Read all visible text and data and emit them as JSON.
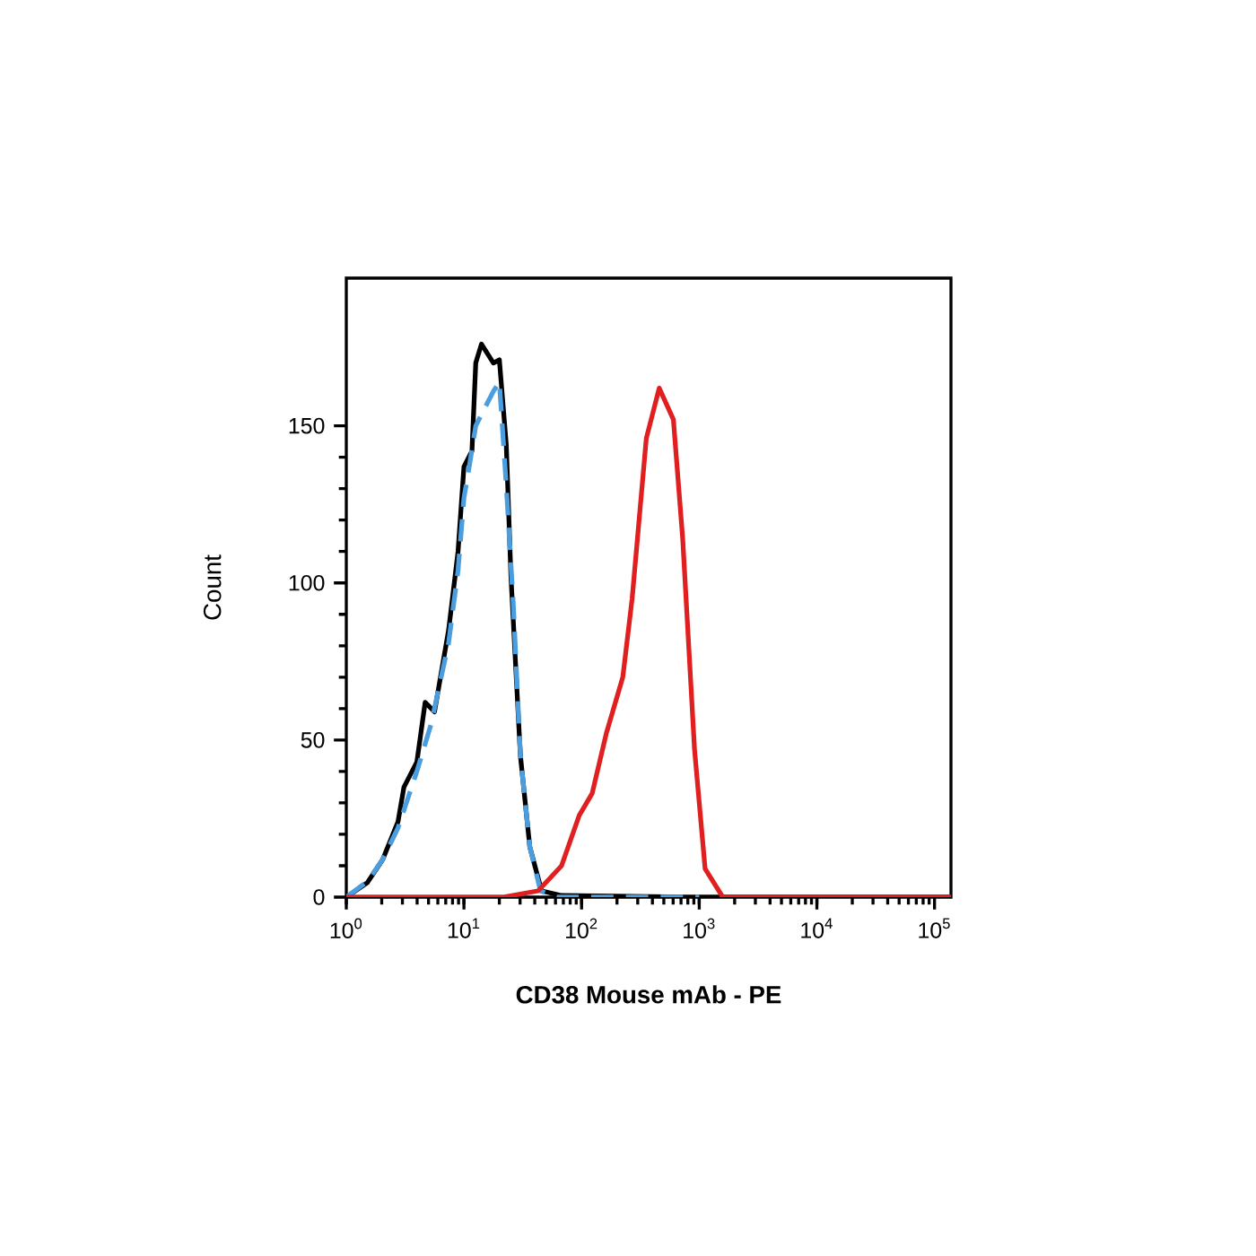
{
  "chart_data": {
    "type": "line",
    "xlabel": "CD38 Mouse mAb - PE",
    "ylabel": "Count",
    "log": "x",
    "grid": false,
    "marker": "none",
    "xlim": [
      1,
      138000
    ],
    "ylim": [
      0,
      197
    ],
    "xticks": [
      {
        "value": 1,
        "label": "10$^{0}$"
      },
      {
        "value": 10,
        "label": "10$^{1}$"
      },
      {
        "value": 100,
        "label": "10$^{2}$"
      },
      {
        "value": 1000,
        "label": "10$^{3}$"
      },
      {
        "value": 10000,
        "label": "10$^{4}$"
      },
      {
        "value": 100000,
        "label": "10$^{5}$"
      }
    ],
    "yticks": [
      0,
      50,
      100,
      150
    ],
    "series": [
      {
        "color": "#000000",
        "line_style": "solid",
        "x": [
          1,
          1.51,
          2.04,
          2.75,
          3.09,
          3.98,
          4.68,
          5.62,
          7.41,
          8.91,
          10,
          11.7,
          12.6,
          14.1,
          17.8,
          20,
          22.9,
          25.1,
          30.2,
          36.3,
          45.7,
          67.6,
          1000,
          10000,
          138000
        ],
        "values": [
          0,
          4.6,
          12,
          24,
          35,
          43,
          62,
          59,
          85,
          110,
          137,
          142,
          170,
          176,
          170,
          171,
          144,
          102,
          45,
          16,
          2,
          0.5,
          0,
          0,
          0
        ]
      },
      {
        "color": "#4a9ee0",
        "line_style": "dashed",
        "x": [
          1,
          1.51,
          2.04,
          2.75,
          3.98,
          5.25,
          7.41,
          8.91,
          10,
          11.2,
          12.6,
          17.8,
          20,
          22.9,
          26.3,
          30.2,
          36.3,
          44.7,
          61.7,
          1000
        ],
        "values": [
          0,
          5,
          12,
          22,
          40,
          55,
          81,
          104,
          127,
          138,
          150,
          161,
          164,
          131,
          93,
          45,
          16,
          2,
          0,
          0
        ]
      },
      {
        "color": "#e02020",
        "line_style": "solid",
        "x": [
          1,
          21.4,
          42.7,
          67.6,
          95.5,
          123,
          162,
          224,
          269,
          355,
          457,
          603,
          724,
          912,
          1122,
          1585,
          138000
        ],
        "values": [
          0,
          0,
          2,
          10,
          26,
          33,
          52,
          70,
          95,
          146,
          162,
          152,
          114,
          47,
          9,
          0,
          0
        ]
      }
    ]
  }
}
